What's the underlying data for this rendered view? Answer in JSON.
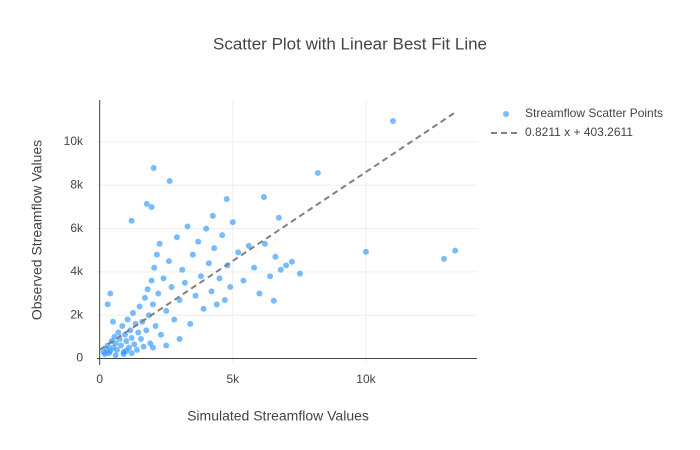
{
  "chart_data": {
    "type": "scatter",
    "title": "Scatter Plot with Linear Best Fit Line",
    "x_label": "Simulated Streamflow Values",
    "y_label": "Observed Streamflow Values",
    "xlim": [
      -100,
      14170
    ],
    "ylim": [
      -300,
      11940
    ],
    "xticks": [
      0,
      {
        "value": 5000,
        "label": "5k"
      },
      {
        "value": 10000,
        "label": "10k"
      }
    ],
    "yticks": [
      0,
      {
        "value": 2000,
        "label": "2k"
      },
      {
        "value": 4000,
        "label": "4k"
      },
      {
        "value": 6000,
        "label": "6k"
      },
      {
        "value": 8000,
        "label": "8k"
      },
      {
        "value": 10000,
        "label": "10k"
      }
    ],
    "grid": true,
    "legend": "top-right",
    "series": [
      {
        "name": "Streamflow Scatter Points",
        "color": "#1e90ff",
        "mode": "markers",
        "x": [
          150,
          250,
          300,
          400,
          450,
          500,
          550,
          600,
          650,
          700,
          750,
          800,
          850,
          900,
          950,
          1000,
          1050,
          1100,
          1150,
          1200,
          1250,
          1300,
          1350,
          1400,
          1450,
          1500,
          1550,
          1600,
          1650,
          1700,
          1750,
          1800,
          1850,
          1900,
          1950,
          2000,
          2050,
          2100,
          2150,
          2200,
          2250,
          2300,
          2400,
          2500,
          2600,
          2700,
          2800,
          2900,
          3000,
          3100,
          3200,
          3300,
          3400,
          3500,
          3600,
          3700,
          3800,
          3900,
          4000,
          4100,
          4200,
          4300,
          4400,
          4500,
          4600,
          4700,
          4800,
          4900,
          5000,
          5200,
          5400,
          5600,
          5800,
          6000,
          6200,
          6400,
          6600,
          6800,
          7000,
          7520,
          600,
          900,
          1200,
          2000,
          2500,
          3000,
          1000,
          200,
          350,
          500,
          300,
          400,
          11015,
          8195,
          2030,
          2630,
          10000,
          12930,
          13350,
          4770,
          6170,
          4250,
          1770,
          1950,
          1200,
          6540,
          7220,
          6730
        ],
        "values": [
          300,
          450,
          600,
          350,
          800,
          500,
          1000,
          700,
          400,
          1200,
          900,
          600,
          1500,
          300,
          1100,
          800,
          1800,
          500,
          1300,
          950,
          2100,
          650,
          1600,
          400,
          1200,
          2400,
          900,
          1700,
          550,
          2800,
          1300,
          3200,
          2000,
          700,
          3600,
          2500,
          4200,
          1500,
          4800,
          3000,
          5300,
          1100,
          3700,
          2200,
          4500,
          3300,
          1800,
          5600,
          2700,
          4100,
          3500,
          6100,
          1600,
          4800,
          2900,
          5400,
          3800,
          2300,
          6000,
          4400,
          3100,
          5100,
          2500,
          3700,
          5700,
          2700,
          4300,
          3300,
          6300,
          4900,
          3600,
          5200,
          4200,
          3000,
          5300,
          3800,
          4700,
          4100,
          4300,
          3920,
          150,
          200,
          250,
          500,
          600,
          900,
          350,
          200,
          250,
          1700,
          2500,
          3000,
          10968,
          8571,
          8800,
          8200,
          4930,
          4600,
          4980,
          7370,
          7460,
          6590,
          7140,
          7000,
          6360,
          2670,
          4470,
          6500
        ]
      },
      {
        "name": "0.8211 x + 403.2611",
        "color": "#808080",
        "mode": "lines",
        "x": [
          0,
          13350
        ],
        "values": [
          403.2611,
          11364.94
        ]
      }
    ]
  }
}
